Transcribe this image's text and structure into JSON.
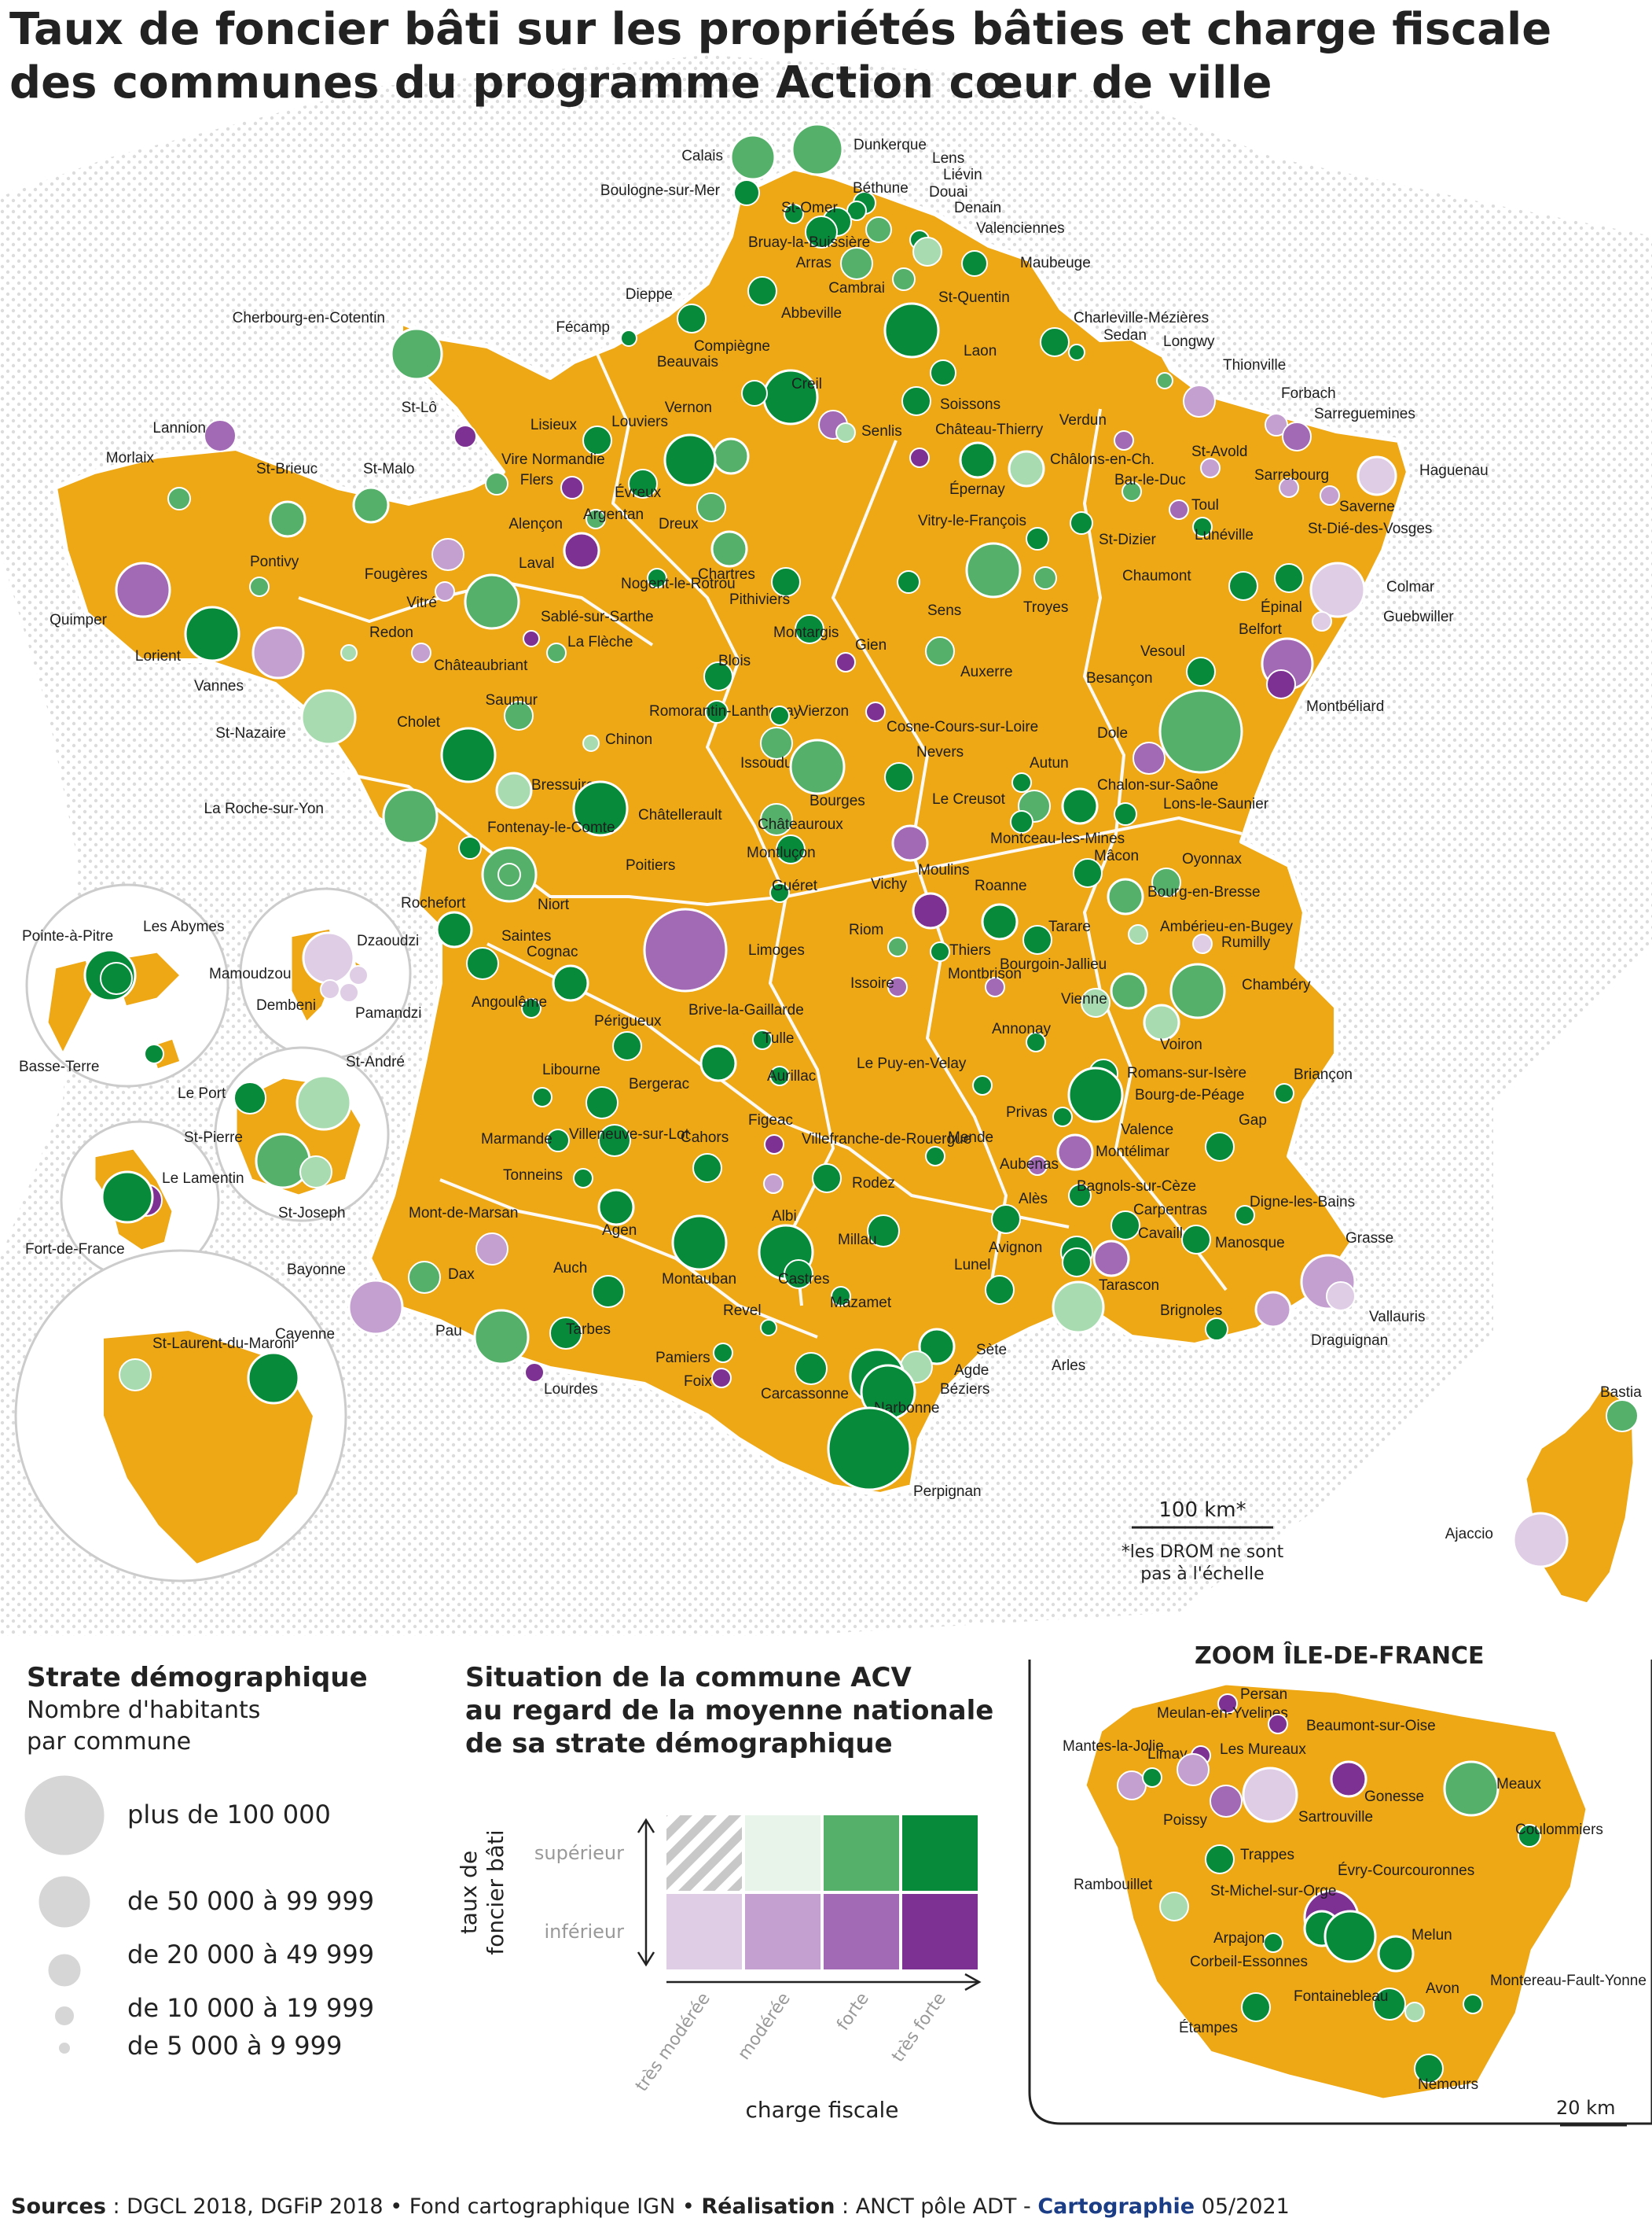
{
  "title": {
    "line1": "Taux de foncier bâti sur les propriétés bâties et charge fiscale",
    "line2": "des communes du programme Action cœur de ville"
  },
  "colors": {
    "territory": "#eea715",
    "border": "#ffffff",
    "very_strong_high": "#078a3a",
    "strong_high": "#55b06a",
    "moderate_high": "#a8dcb0",
    "very_moderate_high": "#e8f4ea",
    "very_strong_low": "#7d3293",
    "strong_low": "#a269b5",
    "moderate_low": "#c3a0d0",
    "very_moderate_low": "#dfcde6",
    "hatch": "#c8c8c8"
  },
  "legend_size": {
    "title": "Strate démographique",
    "subtitle_line1": "Nombre d'habitants",
    "subtitle_line2": "par commune",
    "classes": [
      {
        "label": "plus de 100 000"
      },
      {
        "label": "de 50 000 à 99 999"
      },
      {
        "label": "de 20 000 à 49 999"
      },
      {
        "label": "de 10 000 à 19 999"
      },
      {
        "label": "de 5 000 à 9 999"
      }
    ]
  },
  "legend_matrix": {
    "title_line1": "Situation de la commune ACV",
    "title_line2": "au regard de la moyenne nationale",
    "title_line3": "de sa strate démographique",
    "y_axis_line1": "taux de",
    "y_axis_line2": "foncier bâti",
    "rows": [
      "supérieur",
      "inférieur"
    ],
    "columns": [
      "très modérée",
      "modérée",
      "forte",
      "très forte"
    ],
    "x_axis": "charge fiscale"
  },
  "scale": {
    "km": "100 km*",
    "note_line1": "*les DROM ne sont",
    "note_line2": "pas à l'échelle"
  },
  "zoom": {
    "title": "ZOOM ÎLE-DE-FRANCE",
    "scale": "20 km",
    "towns": [
      {
        "name": "Persan",
        "c": "very_strong_low"
      },
      {
        "name": "Meulan-en-Yvelines",
        "c": "very_strong_low"
      },
      {
        "name": "Beaumont-sur-Oise",
        "c": "very_strong_low"
      },
      {
        "name": "Mantes-la-Jolie",
        "c": "moderate_low"
      },
      {
        "name": "Limay",
        "c": "very_strong_high"
      },
      {
        "name": "Les Mureaux",
        "c": "moderate_low"
      },
      {
        "name": "Sartrouville",
        "c": "very_moderate_low"
      },
      {
        "name": "Gonesse",
        "c": "very_strong_low"
      },
      {
        "name": "Meaux",
        "c": "strong_high"
      },
      {
        "name": "Poissy",
        "c": "strong_low"
      },
      {
        "name": "Coulommiers",
        "c": "very_strong_high"
      },
      {
        "name": "Trappes",
        "c": "very_strong_high"
      },
      {
        "name": "Évry-Courcouronnes",
        "c": "very_strong_low"
      },
      {
        "name": "Rambouillet",
        "c": "moderate_high"
      },
      {
        "name": "St-Michel-sur-Orge",
        "c": "very_strong_high"
      },
      {
        "name": "Arpajon",
        "c": "very_strong_high"
      },
      {
        "name": "Corbeil-Essonnes",
        "c": "very_strong_high"
      },
      {
        "name": "Melun",
        "c": "very_strong_high"
      },
      {
        "name": "Fontainebleau",
        "c": "very_strong_high"
      },
      {
        "name": "Avon",
        "c": "moderate_high"
      },
      {
        "name": "Montereau-Fault-Yonne",
        "c": "very_strong_high"
      },
      {
        "name": "Étampes",
        "c": "very_strong_high"
      },
      {
        "name": "Nemours",
        "c": "very_strong_high"
      }
    ]
  },
  "towns": [
    {
      "name": "Calais",
      "c": "strong_high"
    },
    {
      "name": "Dunkerque",
      "c": "strong_high"
    },
    {
      "name": "Lens",
      "c": "very_strong_high"
    },
    {
      "name": "Liévin",
      "c": "very_strong_high"
    },
    {
      "name": "Boulogne-sur-Mer",
      "c": "very_strong_high"
    },
    {
      "name": "Béthune",
      "c": "very_strong_high"
    },
    {
      "name": "Douai",
      "c": "strong_high"
    },
    {
      "name": "St-Omer",
      "c": "very_strong_high"
    },
    {
      "name": "Denain",
      "c": "very_strong_high"
    },
    {
      "name": "Bruay-la-Buissière",
      "c": "very_strong_high"
    },
    {
      "name": "Valenciennes",
      "c": "moderate_high"
    },
    {
      "name": "Arras",
      "c": "strong_high"
    },
    {
      "name": "Maubeuge",
      "c": "very_strong_high"
    },
    {
      "name": "Cambrai",
      "c": "strong_high"
    },
    {
      "name": "Dieppe",
      "c": "very_strong_high"
    },
    {
      "name": "St-Quentin",
      "c": "very_strong_high"
    },
    {
      "name": "Abbeville",
      "c": "very_strong_high"
    },
    {
      "name": "Fécamp",
      "c": "very_strong_high"
    },
    {
      "name": "Charleville-Mézières",
      "c": "very_strong_high"
    },
    {
      "name": "Cherbourg-en-Cotentin",
      "c": "strong_high"
    },
    {
      "name": "Sedan",
      "c": "very_strong_high"
    },
    {
      "name": "Compiègne",
      "c": "very_strong_high"
    },
    {
      "name": "Longwy",
      "c": "strong_high"
    },
    {
      "name": "Laon",
      "c": "very_strong_high"
    },
    {
      "name": "Beauvais",
      "c": "very_strong_high"
    },
    {
      "name": "Thionville",
      "c": "moderate_low"
    },
    {
      "name": "Creil",
      "c": "strong_low"
    },
    {
      "name": "Soissons",
      "c": "very_strong_high"
    },
    {
      "name": "Forbach",
      "c": "moderate_low"
    },
    {
      "name": "Lannion",
      "c": "strong_low"
    },
    {
      "name": "St-Lô",
      "c": "very_strong_low"
    },
    {
      "name": "Senlis",
      "c": "moderate_high"
    },
    {
      "name": "Sarreguemines",
      "c": "strong_low"
    },
    {
      "name": "Vernon",
      "c": "strong_high"
    },
    {
      "name": "Château-Thierry",
      "c": "very_strong_low"
    },
    {
      "name": "Louviers",
      "c": "very_strong_high"
    },
    {
      "name": "Verdun",
      "c": "strong_low"
    },
    {
      "name": "Lisieux",
      "c": "very_strong_high"
    },
    {
      "name": "Morlaix",
      "c": "strong_high"
    },
    {
      "name": "St-Brieuc",
      "c": "strong_high"
    },
    {
      "name": "St-Malo",
      "c": "strong_high"
    },
    {
      "name": "Vire Normandie",
      "c": "strong_high"
    },
    {
      "name": "St-Avold",
      "c": "moderate_low"
    },
    {
      "name": "Haguenau",
      "c": "very_moderate_low"
    },
    {
      "name": "Châlons-en-Ch.",
      "c": "moderate_high"
    },
    {
      "name": "Flers",
      "c": "very_strong_low"
    },
    {
      "name": "Évreux",
      "c": "very_strong_high"
    },
    {
      "name": "Sarrebourg",
      "c": "moderate_low"
    },
    {
      "name": "Bar-le-Duc",
      "c": "strong_high"
    },
    {
      "name": "Épernay",
      "c": "very_strong_high"
    },
    {
      "name": "Toul",
      "c": "strong_low"
    },
    {
      "name": "Saverne",
      "c": "moderate_low"
    },
    {
      "name": "Argentan",
      "c": "strong_high"
    },
    {
      "name": "Alençon",
      "c": "very_strong_low"
    },
    {
      "name": "Dreux",
      "c": "strong_high"
    },
    {
      "name": "Vitry-le-François",
      "c": "very_strong_high"
    },
    {
      "name": "St-Dié-des-Vosges",
      "c": "very_strong_high"
    },
    {
      "name": "Lunéville",
      "c": "very_strong_high"
    },
    {
      "name": "Pontivy",
      "c": "strong_high"
    },
    {
      "name": "Fougères",
      "c": "moderate_low"
    },
    {
      "name": "St-Dizier",
      "c": "very_strong_high"
    },
    {
      "name": "Laval",
      "c": "strong_high"
    },
    {
      "name": "Nogent-le-Rotrou",
      "c": "very_strong_high"
    },
    {
      "name": "Chartres",
      "c": "strong_high"
    },
    {
      "name": "Chaumont",
      "c": "strong_high"
    },
    {
      "name": "Quimper",
      "c": "strong_low"
    },
    {
      "name": "Colmar",
      "c": "very_moderate_low"
    },
    {
      "name": "Vitré",
      "c": "moderate_low"
    },
    {
      "name": "Pithiviers",
      "c": "very_strong_high"
    },
    {
      "name": "Sens",
      "c": "very_strong_high"
    },
    {
      "name": "Troyes",
      "c": "strong_high"
    },
    {
      "name": "Épinal",
      "c": "very_strong_high"
    },
    {
      "name": "Guebwiller",
      "c": "very_moderate_low"
    },
    {
      "name": "Sablé-sur-Sarthe",
      "c": "very_strong_low"
    },
    {
      "name": "Lorient",
      "c": "very_strong_high"
    },
    {
      "name": "Montargis",
      "c": "very_strong_high"
    },
    {
      "name": "Redon",
      "c": "moderate_high"
    },
    {
      "name": "La Flèche",
      "c": "strong_high"
    },
    {
      "name": "Belfort",
      "c": "strong_low"
    },
    {
      "name": "Vannes",
      "c": "moderate_low"
    },
    {
      "name": "Gien",
      "c": "very_strong_low"
    },
    {
      "name": "Châteaubriant",
      "c": "moderate_low"
    },
    {
      "name": "Blois",
      "c": "very_strong_high"
    },
    {
      "name": "Auxerre",
      "c": "strong_high"
    },
    {
      "name": "Vesoul",
      "c": "very_strong_high"
    },
    {
      "name": "Montbéliard",
      "c": "very_strong_low"
    },
    {
      "name": "Besançon",
      "c": "strong_high"
    },
    {
      "name": "Saumur",
      "c": "strong_high"
    },
    {
      "name": "St-Nazaire",
      "c": "moderate_high"
    },
    {
      "name": "Romorantin-Lanthenay",
      "c": "very_strong_high"
    },
    {
      "name": "Vierzon",
      "c": "very_strong_high"
    },
    {
      "name": "Cholet",
      "c": "very_strong_high"
    },
    {
      "name": "Chinon",
      "c": "moderate_high"
    },
    {
      "name": "Cosne-Cours-sur-Loire",
      "c": "very_strong_low"
    },
    {
      "name": "Dole",
      "c": "strong_low"
    },
    {
      "name": "Issoudun",
      "c": "strong_high"
    },
    {
      "name": "Nevers",
      "c": "very_strong_high"
    },
    {
      "name": "Autun",
      "c": "very_strong_high"
    },
    {
      "name": "Bressuire",
      "c": "moderate_high"
    },
    {
      "name": "Bourges",
      "c": "strong_high"
    },
    {
      "name": "Chalon-sur-Saône",
      "c": "very_strong_high"
    },
    {
      "name": "La Roche-sur-Yon",
      "c": "strong_high"
    },
    {
      "name": "Châtellerault",
      "c": "very_strong_high"
    },
    {
      "name": "Le Creusot",
      "c": "strong_high"
    },
    {
      "name": "Lons-le-Saunier",
      "c": "very_strong_high"
    },
    {
      "name": "Fontenay-le-Comte",
      "c": "very_strong_high"
    },
    {
      "name": "Châteauroux",
      "c": "strong_high"
    },
    {
      "name": "Montceau-les-Mines",
      "c": "very_strong_high"
    },
    {
      "name": "Poitiers",
      "c": "strong_high"
    },
    {
      "name": "Montluçon",
      "c": "very_strong_high"
    },
    {
      "name": "Mâcon",
      "c": "very_strong_high"
    },
    {
      "name": "Oyonnax",
      "c": "strong_high"
    },
    {
      "name": "Moulins",
      "c": "strong_low"
    },
    {
      "name": "Niort",
      "c": "strong_high"
    },
    {
      "name": "Guéret",
      "c": "very_strong_high"
    },
    {
      "name": "Bourg-en-Bresse",
      "c": "strong_high"
    },
    {
      "name": "Vichy",
      "c": "very_strong_low"
    },
    {
      "name": "Roanne",
      "c": "very_strong_high"
    },
    {
      "name": "Ambérieu-en-Bugey",
      "c": "moderate_high"
    },
    {
      "name": "Rochefort",
      "c": "very_strong_high"
    },
    {
      "name": "Tarare",
      "c": "very_strong_high"
    },
    {
      "name": "Rumilly",
      "c": "very_moderate_low"
    },
    {
      "name": "Saintes",
      "c": "very_strong_high"
    },
    {
      "name": "Limoges",
      "c": "strong_low"
    },
    {
      "name": "Riom",
      "c": "strong_high"
    },
    {
      "name": "Thiers",
      "c": "very_strong_high"
    },
    {
      "name": "Cognac",
      "c": "very_strong_high"
    },
    {
      "name": "Montbrison",
      "c": "strong_low"
    },
    {
      "name": "Bourgoin-Jallieu",
      "c": "strong_high"
    },
    {
      "name": "Chambéry",
      "c": "strong_high"
    },
    {
      "name": "Angoulême",
      "c": "very_strong_high"
    },
    {
      "name": "Issoire",
      "c": "strong_low"
    },
    {
      "name": "Vienne",
      "c": "moderate_high"
    },
    {
      "name": "Périgueux",
      "c": "very_strong_high"
    },
    {
      "name": "Brive-la-Gaillarde",
      "c": "very_strong_high"
    },
    {
      "name": "Tulle",
      "c": "very_strong_high"
    },
    {
      "name": "Annonay",
      "c": "very_strong_high"
    },
    {
      "name": "Voiron",
      "c": "moderate_high"
    },
    {
      "name": "Libourne",
      "c": "very_strong_high"
    },
    {
      "name": "Aurillac",
      "c": "very_strong_high"
    },
    {
      "name": "Le Puy-en-Velay",
      "c": "very_strong_high"
    },
    {
      "name": "Romans-sur-Isère",
      "c": "very_strong_high"
    },
    {
      "name": "Briançon",
      "c": "very_strong_high"
    },
    {
      "name": "Bergerac",
      "c": "very_strong_high"
    },
    {
      "name": "Bourg-de-Péage",
      "c": "moderate_high"
    },
    {
      "name": "Marmande",
      "c": "very_strong_high"
    },
    {
      "name": "Villeneuve-sur-Lot",
      "c": "very_strong_high"
    },
    {
      "name": "Figeac",
      "c": "very_strong_low"
    },
    {
      "name": "Privas",
      "c": "very_strong_high"
    },
    {
      "name": "Valence",
      "c": "very_strong_high"
    },
    {
      "name": "Gap",
      "c": "very_strong_high"
    },
    {
      "name": "Cahors",
      "c": "very_strong_high"
    },
    {
      "name": "Villefranche-de-Rouergue",
      "c": "moderate_low"
    },
    {
      "name": "Mende",
      "c": "very_strong_high"
    },
    {
      "name": "Montélimar",
      "c": "strong_low"
    },
    {
      "name": "Tonneins",
      "c": "very_strong_high"
    },
    {
      "name": "Aubenas",
      "c": "strong_low"
    },
    {
      "name": "Rodez",
      "c": "very_strong_high"
    },
    {
      "name": "Bagnols-sur-Cèze",
      "c": "very_strong_high"
    },
    {
      "name": "Digne-les-Bains",
      "c": "very_strong_high"
    },
    {
      "name": "Mont-de-Marsan",
      "c": "moderate_low"
    },
    {
      "name": "Alès",
      "c": "very_strong_high"
    },
    {
      "name": "Carpentras",
      "c": "very_strong_high"
    },
    {
      "name": "Agen",
      "c": "very_strong_high"
    },
    {
      "name": "Albi",
      "c": "very_strong_high"
    },
    {
      "name": "Millau",
      "c": "very_strong_high"
    },
    {
      "name": "Avignon",
      "c": "very_strong_high"
    },
    {
      "name": "Cavaillon",
      "c": "strong_low"
    },
    {
      "name": "Manosque",
      "c": "very_strong_high"
    },
    {
      "name": "Grasse",
      "c": "moderate_low"
    },
    {
      "name": "Bayonne",
      "c": "moderate_low"
    },
    {
      "name": "Dax",
      "c": "strong_high"
    },
    {
      "name": "Auch",
      "c": "very_strong_high"
    },
    {
      "name": "Montauban",
      "c": "very_strong_high"
    },
    {
      "name": "Castres",
      "c": "very_strong_high"
    },
    {
      "name": "Lunel",
      "c": "very_strong_high"
    },
    {
      "name": "Tarascon",
      "c": "very_strong_high"
    },
    {
      "name": "Vallauris",
      "c": "very_moderate_low"
    },
    {
      "name": "Mazamet",
      "c": "very_strong_high"
    },
    {
      "name": "Brignoles",
      "c": "very_strong_high"
    },
    {
      "name": "Arles",
      "c": "moderate_high"
    },
    {
      "name": "Draguignan",
      "c": "moderate_low"
    },
    {
      "name": "Revel",
      "c": "very_strong_high"
    },
    {
      "name": "Sète",
      "c": "very_strong_high"
    },
    {
      "name": "Pau",
      "c": "strong_high"
    },
    {
      "name": "Tarbes",
      "c": "very_strong_high"
    },
    {
      "name": "Agde",
      "c": "moderate_high"
    },
    {
      "name": "Pamiers",
      "c": "very_strong_high"
    },
    {
      "name": "Béziers",
      "c": "very_strong_high"
    },
    {
      "name": "Foix",
      "c": "very_strong_low"
    },
    {
      "name": "Lourdes",
      "c": "very_strong_low"
    },
    {
      "name": "Carcassonne",
      "c": "very_strong_high"
    },
    {
      "name": "Narbonne",
      "c": "very_strong_high"
    },
    {
      "name": "Perpignan",
      "c": "very_strong_high"
    },
    {
      "name": "Bastia",
      "c": "strong_high"
    },
    {
      "name": "Ajaccio",
      "c": "very_moderate_low"
    }
  ],
  "overseas": [
    {
      "name": "Pointe-à-Pitre",
      "c": "very_strong_high"
    },
    {
      "name": "Les Abymes",
      "c": "very_strong_high"
    },
    {
      "name": "Basse-Terre",
      "c": "very_strong_high"
    },
    {
      "name": "Mamoudzou",
      "c": "very_moderate_low"
    },
    {
      "name": "Dzaoudzi",
      "c": "very_moderate_low"
    },
    {
      "name": "Dembeni",
      "c": "very_moderate_low"
    },
    {
      "name": "Pamandzi",
      "c": "very_moderate_low"
    },
    {
      "name": "St-André",
      "c": "moderate_high"
    },
    {
      "name": "Le Port",
      "c": "very_strong_high"
    },
    {
      "name": "St-Pierre",
      "c": "strong_high"
    },
    {
      "name": "St-Joseph",
      "c": "moderate_high"
    },
    {
      "name": "Le Lamentin",
      "c": "very_strong_low"
    },
    {
      "name": "Fort-de-France",
      "c": "very_strong_high"
    },
    {
      "name": "St-Laurent-du-Maroni",
      "c": "moderate_high"
    },
    {
      "name": "Cayenne",
      "c": "very_strong_high"
    }
  ],
  "sources": {
    "label1": "Sources",
    "text1": " : DGCL 2018, DGFiP 2018 • Fond cartographique IGN • ",
    "label2": "Réalisation",
    "text2": " : ANCT pôle ADT - ",
    "label3": "Cartographie",
    "text3": " 05/2021"
  }
}
